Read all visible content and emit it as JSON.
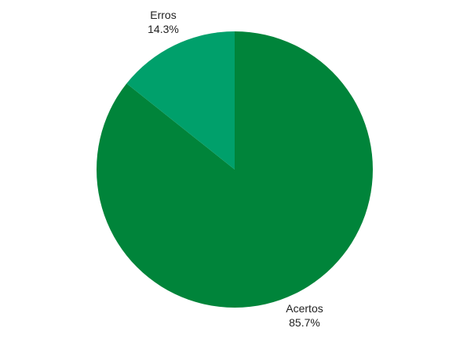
{
  "chart_data": {
    "type": "pie",
    "title": "",
    "categories": [
      "Acertos",
      "Erros"
    ],
    "values": [
      85.7,
      14.3
    ],
    "value_labels": [
      "85.7%",
      "14.3%"
    ],
    "colors": [
      "#00843A",
      "#00A06B"
    ],
    "start_angle": "12 o'clock",
    "direction": "clockwise",
    "legend": "none",
    "label_placement": "outside"
  }
}
